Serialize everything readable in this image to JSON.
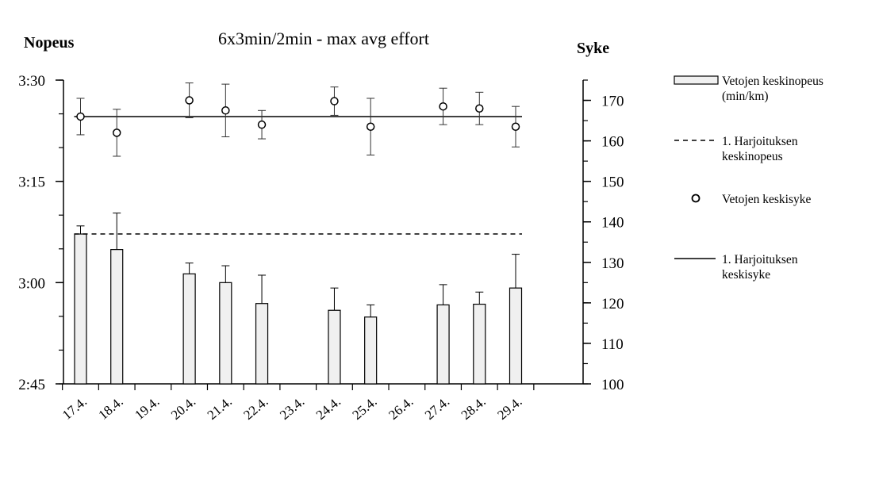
{
  "chart_data": {
    "type": "bar",
    "title": "6x3min/2min  - max avg effort",
    "y_left_label": "Nopeus",
    "y_right_label": "Syke",
    "categories": [
      "17.4.",
      "18.4.",
      "19.4.",
      "20.4.",
      "21.4.",
      "22.4.",
      "23.4.",
      "24.4.",
      "25.4.",
      "26.4.",
      "27.4.",
      "28.4.",
      "29.4."
    ],
    "y_left": {
      "range_seconds": [
        165,
        210
      ],
      "ticks": [
        {
          "label": "2:45",
          "seconds": 165
        },
        {
          "label": "3:00",
          "seconds": 180
        },
        {
          "label": "3:15",
          "seconds": 195
        },
        {
          "label": "3:30",
          "seconds": 210
        }
      ],
      "minor_step_seconds": 5
    },
    "y_right": {
      "range": [
        100,
        175
      ],
      "ticks": [
        100,
        110,
        120,
        130,
        140,
        150,
        160,
        170
      ],
      "minor_step": 5
    },
    "series": [
      {
        "name": "Vetojen keskinopeus (min/km)",
        "kind": "bar",
        "axis": "left",
        "fill": "#f0f0f0",
        "values_seconds": [
          187.2,
          184.9,
          null,
          181.3,
          180.0,
          176.9,
          null,
          175.9,
          174.9,
          null,
          176.7,
          176.8,
          179.2
        ],
        "errors_seconds": [
          1.2,
          5.4,
          null,
          1.6,
          2.5,
          4.2,
          null,
          3.3,
          1.8,
          null,
          3.0,
          1.8,
          5.0
        ]
      },
      {
        "name": "Vetojen keskisyke",
        "kind": "scatter",
        "axis": "right",
        "values": [
          166,
          162,
          null,
          170,
          167.5,
          164,
          null,
          169.8,
          163.5,
          null,
          168.5,
          168,
          163.5
        ],
        "errors": [
          4.5,
          5.8,
          null,
          4.3,
          6.5,
          3.5,
          null,
          3.5,
          7.0,
          null,
          4.5,
          4.0,
          5.0
        ]
      },
      {
        "name": "1. Harjoituksen keskinopeus",
        "kind": "hline",
        "style": "dashed",
        "axis": "left",
        "value_seconds": 187.2
      },
      {
        "name": "1. Harjoituksen keskisyke",
        "kind": "hline",
        "style": "solid",
        "axis": "right",
        "value": 166
      }
    ],
    "legend": {
      "placement": "right",
      "entries": [
        {
          "key": "bar",
          "lines": [
            "Vetojen keskinopeus",
            "(min/km)"
          ]
        },
        {
          "key": "dashed",
          "lines": [
            "1. Harjoituksen",
            "keskinopeus"
          ]
        },
        {
          "key": "marker",
          "lines": [
            "Vetojen keskisyke"
          ]
        },
        {
          "key": "solid",
          "lines": [
            "1. Harjoituksen",
            "keskisyke"
          ]
        }
      ]
    }
  }
}
